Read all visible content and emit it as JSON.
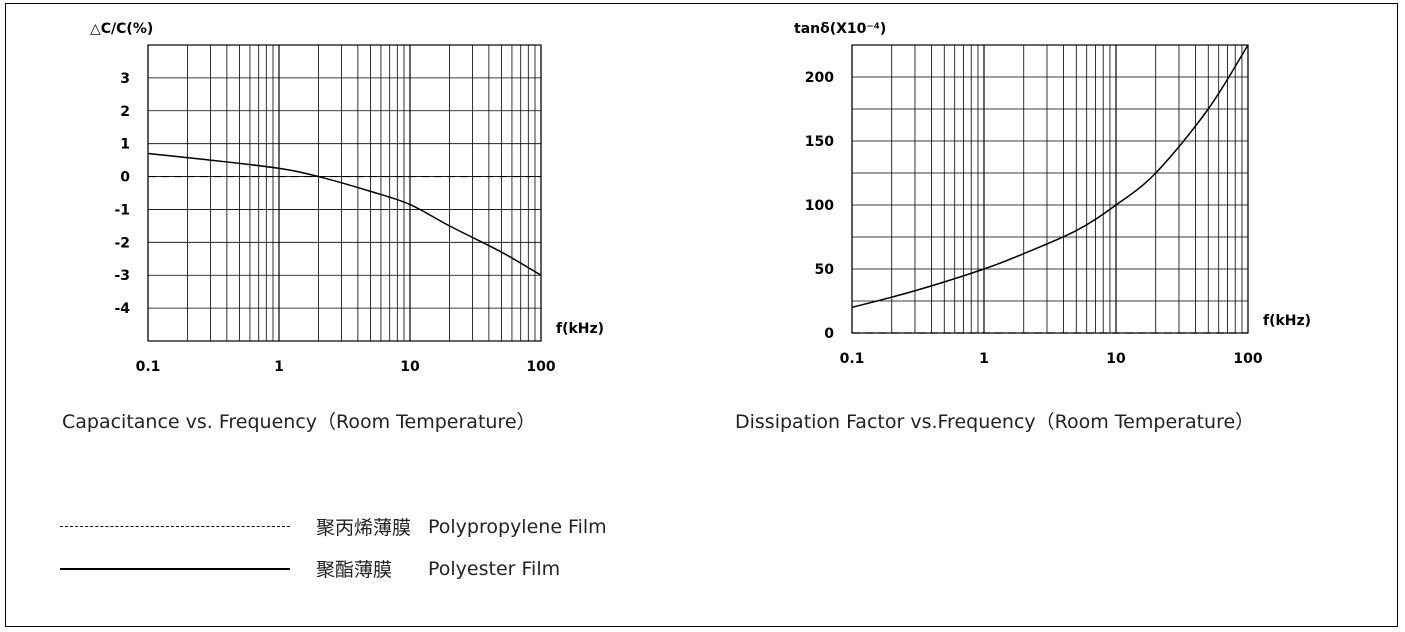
{
  "chart_data": [
    {
      "type": "line",
      "title": "Capacitance vs. Frequency（Room Temperature）",
      "ylabel": "△C/C(%)",
      "xlabel": "f(kHz)",
      "xscale": "log",
      "xlim": [
        0.1,
        100
      ],
      "ylim": [
        -5,
        4
      ],
      "x_ticks": [
        "0.1",
        "1",
        "10",
        "100"
      ],
      "y_ticks": [
        "3",
        "2",
        "1",
        "0",
        "-1",
        "-2",
        "-3",
        "-4"
      ],
      "y_tick_values": [
        3,
        2,
        1,
        0,
        -1,
        -2,
        -3,
        -4
      ],
      "series": [
        {
          "style": "dashed",
          "x": [
            0.1,
            100
          ],
          "y": [
            0,
            0
          ]
        },
        {
          "style": "solid",
          "x": [
            0.1,
            0.3,
            1,
            2,
            5,
            10,
            20,
            50,
            100
          ],
          "y": [
            0.7,
            0.5,
            0.25,
            0.0,
            -0.45,
            -0.85,
            -1.5,
            -2.3,
            -3.0
          ]
        }
      ]
    },
    {
      "type": "line",
      "title": "Dissipation Factor vs.Frequency（Room Temperature）",
      "ylabel": "tanδ(X10⁻⁴)",
      "xlabel": "f(kHz)",
      "xscale": "log",
      "xlim": [
        0.1,
        100
      ],
      "ylim": [
        0,
        225
      ],
      "x_ticks": [
        "0.1",
        "1",
        "10",
        "100"
      ],
      "y_ticks": [
        "200",
        "150",
        "100",
        "50",
        "0"
      ],
      "y_tick_values": [
        200,
        150,
        100,
        50,
        0
      ],
      "series": [
        {
          "style": "dashed",
          "x": [
            0.1,
            100
          ],
          "y": [
            0,
            0
          ]
        },
        {
          "style": "solid",
          "x": [
            0.1,
            0.3,
            1,
            2,
            5,
            10,
            20,
            50,
            100
          ],
          "y": [
            20,
            33,
            50,
            62,
            80,
            100,
            125,
            175,
            225
          ]
        }
      ]
    }
  ],
  "legend": [
    {
      "style": "dashed",
      "label_cn": "聚丙烯薄膜",
      "label_en": "Polypropylene Film"
    },
    {
      "style": "solid",
      "label_cn": "聚酯薄膜",
      "label_en": "Polyester Film"
    }
  ]
}
